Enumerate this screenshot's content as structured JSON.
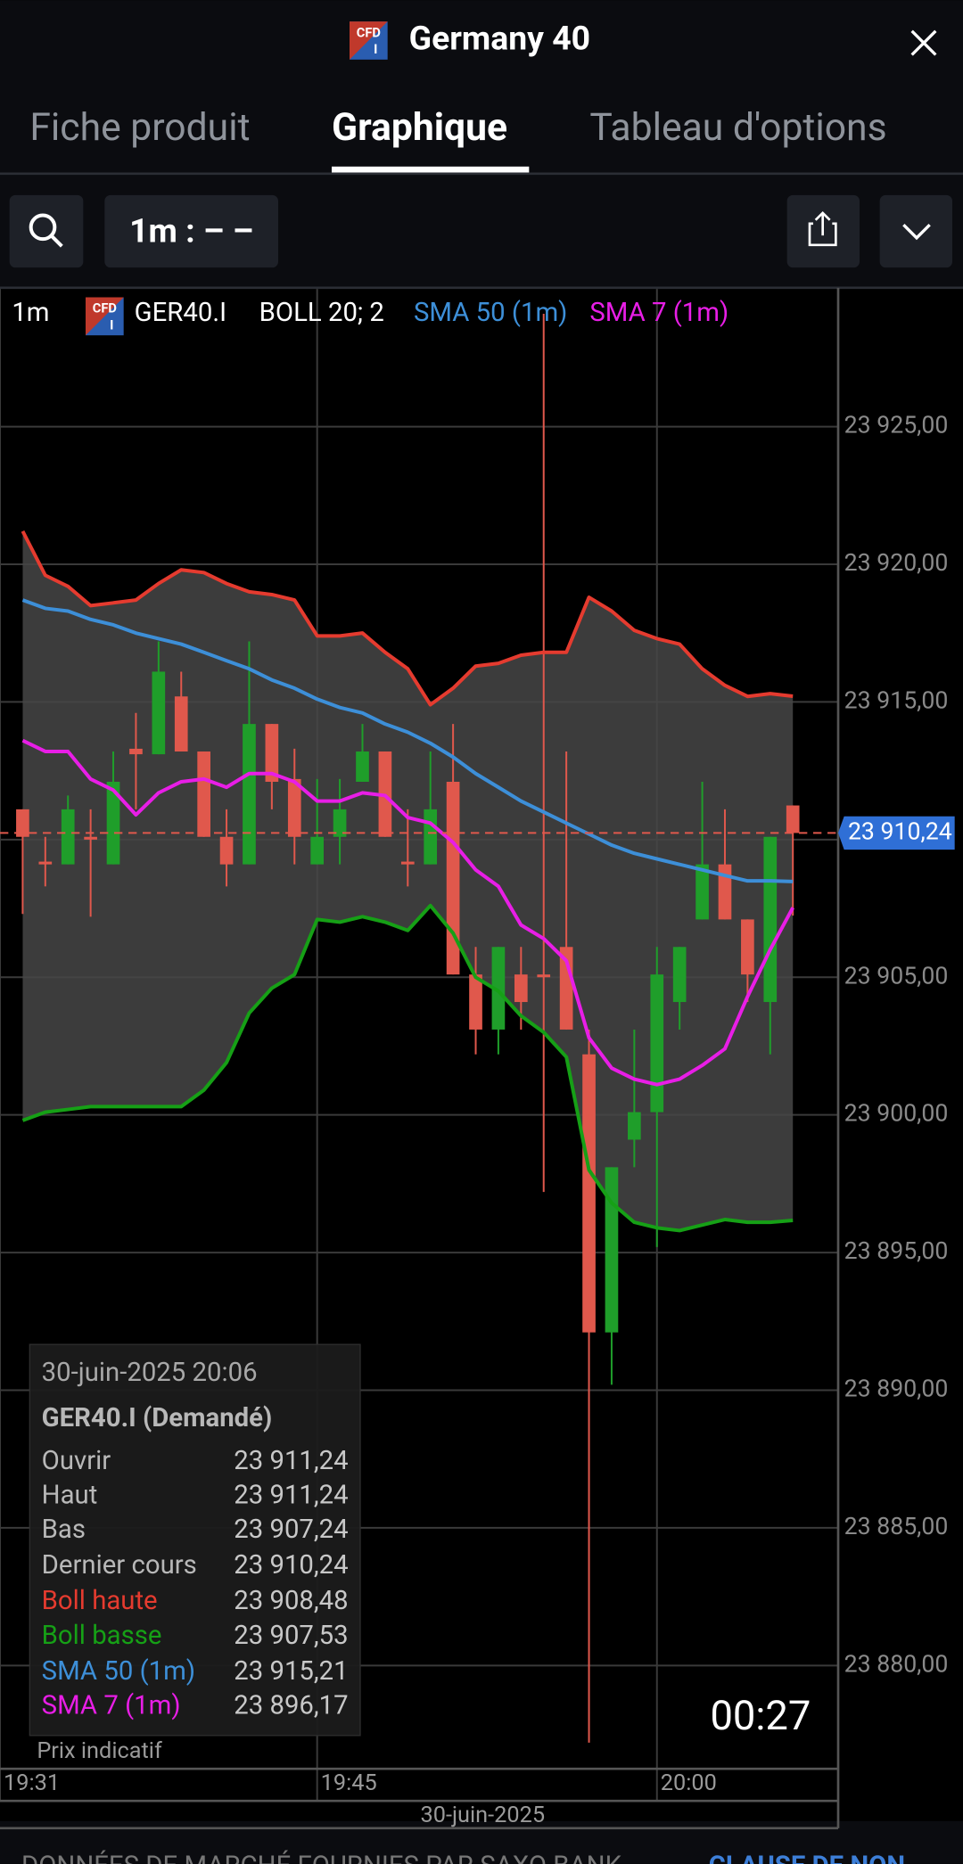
{
  "header": {
    "badge": {
      "top": "CFD",
      "bottom": "I"
    },
    "title": "Germany 40"
  },
  "tabs": {
    "items": [
      "Fiche produit",
      "Graphique",
      "Tableau d'options"
    ],
    "active": 1
  },
  "toolbar": {
    "interval": "1m : – –"
  },
  "chart_data": {
    "type": "candlestick",
    "interval": "1m",
    "instrument": "GER40.I",
    "indicator": "BOLL 20; 2",
    "x": [
      "19:32",
      "19:33",
      "19:34",
      "19:35",
      "19:36",
      "19:37",
      "19:38",
      "19:39",
      "19:40",
      "19:41",
      "19:42",
      "19:43",
      "19:44",
      "19:45",
      "19:46",
      "19:47",
      "19:48",
      "19:49",
      "19:50",
      "19:51",
      "19:52",
      "19:53",
      "19:54",
      "19:55",
      "19:56",
      "19:57",
      "19:58",
      "19:59",
      "20:00",
      "20:01",
      "20:02",
      "20:03",
      "20:04",
      "20:05",
      "20:06"
    ],
    "open": [
      23911.1,
      23909.2,
      23909.1,
      23910.1,
      23909.1,
      23913.3,
      23913.1,
      23915.2,
      23913.2,
      23910.1,
      23909.1,
      23914.2,
      23912.2,
      23909.1,
      23910.1,
      23912.1,
      23913.2,
      23909.2,
      23909.1,
      23912.1,
      23905.1,
      23903.1,
      23905.1,
      23905.1,
      23906.1,
      23902.2,
      23892.1,
      23899.1,
      23900.1,
      23904.1,
      23907.1,
      23909.1,
      23907.1,
      23904.1,
      23911.24
    ],
    "high": [
      23911.1,
      23910.1,
      23911.6,
      23911.1,
      23913.2,
      23914.6,
      23917.2,
      23916.1,
      23913.2,
      23911.1,
      23917.2,
      23914.2,
      23913.3,
      23912.2,
      23912.2,
      23914.2,
      23913.2,
      23911.1,
      23913.2,
      23914.2,
      23906.1,
      23906.1,
      23906.1,
      23929.1,
      23913.2,
      23903.1,
      23898.1,
      23903.1,
      23906.1,
      23906.1,
      23912.1,
      23911.1,
      23907.1,
      23910.1,
      23911.24
    ],
    "low": [
      23907.3,
      23908.3,
      23909.1,
      23907.2,
      23909.1,
      23911.1,
      23913.1,
      23913.2,
      23910.1,
      23908.3,
      23909.1,
      23911.1,
      23909.1,
      23909.1,
      23909.1,
      23912.1,
      23910.1,
      23908.3,
      23909.1,
      23905.1,
      23902.2,
      23902.2,
      23903.1,
      23897.2,
      23903.1,
      23877.2,
      23890.2,
      23898.1,
      23895.2,
      23903.1,
      23907.1,
      23907.1,
      23904.1,
      23902.2,
      23907.24
    ],
    "close": [
      23910.1,
      23909.1,
      23911.1,
      23910.0,
      23912.1,
      23913.1,
      23916.1,
      23913.2,
      23910.1,
      23909.1,
      23914.2,
      23912.1,
      23910.1,
      23910.1,
      23911.1,
      23913.2,
      23910.1,
      23909.1,
      23911.1,
      23905.1,
      23903.1,
      23906.1,
      23904.1,
      23905.0,
      23903.1,
      23892.1,
      23898.1,
      23900.1,
      23905.1,
      23906.1,
      23909.1,
      23907.1,
      23905.1,
      23910.1,
      23910.24
    ],
    "up_color": "#1f9e2a",
    "down_color": "#e0584c",
    "band_fill": "#474747",
    "series": [
      {
        "name": "SMA 50 (1m)",
        "color": "#3d8fd8",
        "values": [
          23918.7,
          23918.4,
          23918.3,
          23918.0,
          23917.8,
          23917.5,
          23917.3,
          23917.1,
          23916.8,
          23916.5,
          23916.2,
          23915.8,
          23915.5,
          23915.1,
          23914.8,
          23914.6,
          23914.2,
          23913.9,
          23913.5,
          23913.0,
          23912.4,
          23911.9,
          23911.4,
          23911.0,
          23910.6,
          23910.2,
          23909.8,
          23909.5,
          23909.3,
          23909.1,
          23908.9,
          23908.7,
          23908.5,
          23908.5,
          23908.48
        ]
      },
      {
        "name": "SMA 7 (1m)",
        "color": "#e81ee6",
        "values": [
          23913.6,
          23913.2,
          23913.2,
          23912.2,
          23911.8,
          23910.9,
          23911.7,
          23912.1,
          23912.2,
          23911.9,
          23912.4,
          23912.4,
          23912.1,
          23911.4,
          23911.4,
          23911.7,
          23911.6,
          23910.8,
          23910.6,
          23909.9,
          23908.9,
          23908.3,
          23906.9,
          23906.4,
          23905.6,
          23902.8,
          23901.7,
          23901.3,
          23901.1,
          23901.3,
          23901.8,
          23902.4,
          23904.3,
          23906.0,
          23907.53
        ]
      },
      {
        "name": "Boll haute",
        "color": "#e53b2f",
        "values": [
          23921.2,
          23919.6,
          23919.2,
          23918.5,
          23918.6,
          23918.7,
          23919.3,
          23919.8,
          23919.7,
          23919.3,
          23919.0,
          23918.9,
          23918.7,
          23917.4,
          23917.4,
          23917.5,
          23916.8,
          23916.2,
          23914.9,
          23915.5,
          23916.3,
          23916.4,
          23916.7,
          23916.8,
          23916.8,
          23918.8,
          23918.3,
          23917.6,
          23917.3,
          23917.1,
          23916.2,
          23915.6,
          23915.2,
          23915.3,
          23915.21
        ]
      },
      {
        "name": "Boll basse",
        "color": "#16a016",
        "values": [
          23899.8,
          23900.1,
          23900.2,
          23900.3,
          23900.3,
          23900.3,
          23900.3,
          23900.3,
          23900.9,
          23901.9,
          23903.7,
          23904.6,
          23905.1,
          23907.1,
          23907.0,
          23907.2,
          23907.0,
          23906.7,
          23907.6,
          23906.6,
          23905.0,
          23904.5,
          23903.6,
          23903.0,
          23902.1,
          23898.0,
          23896.8,
          23896.1,
          23895.9,
          23895.8,
          23896.0,
          23896.2,
          23896.1,
          23896.1,
          23896.17
        ]
      }
    ],
    "ylim": [
      23876.25,
      23930
    ],
    "yticks": [
      {
        "value": 23925,
        "label": "23 925,00"
      },
      {
        "value": 23920,
        "label": "23 920,00"
      },
      {
        "value": 23915,
        "label": "23 915,00"
      },
      {
        "value": 23910,
        "label": "23 910,00"
      },
      {
        "value": 23905,
        "label": "23 905,00"
      },
      {
        "value": 23900,
        "label": "23 900,00"
      },
      {
        "value": 23895,
        "label": "23 895,00"
      },
      {
        "value": 23890,
        "label": "23 890,00"
      },
      {
        "value": 23885,
        "label": "23 885,00"
      },
      {
        "value": 23880,
        "label": "23 880,00"
      }
    ],
    "xlim": [
      "19:31",
      "20:08"
    ],
    "xticks": [
      "19:31",
      "19:45",
      "20:00"
    ],
    "x_axis_label": "30-juin-2025",
    "last_price": {
      "value": 23910.24,
      "label": "23 910,24"
    },
    "grid": true
  },
  "tooltip": {
    "title": "30-juin-2025 20:06",
    "instrument": "GER40.I (Demandé)",
    "rows": [
      {
        "label": "Ouvrir",
        "value": "23 911,24"
      },
      {
        "label": "Haut",
        "value": "23 911,24"
      },
      {
        "label": "Bas",
        "value": "23 907,24"
      },
      {
        "label": "Dernier cours",
        "value": "23 910,24"
      }
    ],
    "series_values": [
      "23 915,21",
      "23 896,17",
      "23 908,48",
      "23 907,53"
    ]
  },
  "timer": "00:27",
  "footnote": "Prix indicatif",
  "disclaimer": {
    "text": "DONNÉES DE MARCHÉ FOURNIES PAR SAXO BANK -",
    "link": "CLAUSE DE NON"
  }
}
